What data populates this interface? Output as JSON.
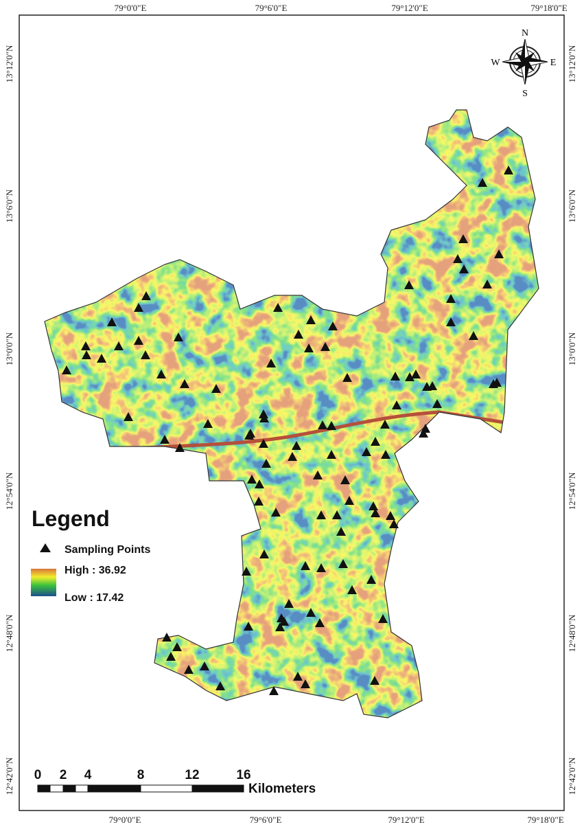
{
  "longitudes": [
    "79°0'0\"E",
    "79°6'0\"E",
    "79°12'0\"E",
    "79°18'0\"E"
  ],
  "latitudes": [
    "13°12'0\"N",
    "13°6'0\"N",
    "13°0'0\"N",
    "12°54'0\"N",
    "12°48'0\"N",
    "12°42'0\"N"
  ],
  "compass": {
    "n": "N",
    "e": "E",
    "s": "S",
    "w": "W"
  },
  "legend": {
    "title": "Legend",
    "points": "Sampling Points",
    "high": "High : 36.92",
    "low": "Low : 17.42"
  },
  "scale_bar": {
    "labels": [
      "0",
      "2",
      "4",
      "8",
      "12",
      "16"
    ],
    "unit": "Kilometers"
  }
}
